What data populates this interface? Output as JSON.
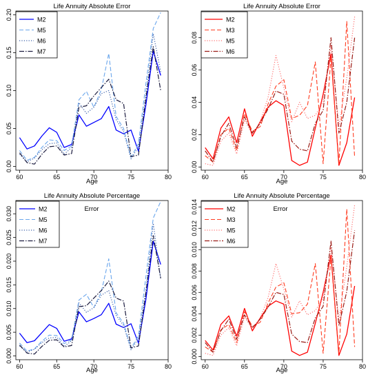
{
  "chart_data": [
    {
      "type": "line",
      "title": "Life Annuity Absolute Error",
      "subtitle": "",
      "xlabel": "Age",
      "ylabel": "",
      "xlim": [
        59.5,
        80
      ],
      "ylim": [
        -0.005,
        0.205
      ],
      "xticks": [
        "60",
        "65",
        "70",
        "75",
        "80"
      ],
      "yticks": [
        "0.00",
        "0.05",
        "0.10",
        "0.15",
        "0.20"
      ],
      "legend_position": "top-left",
      "x": [
        60,
        61,
        62,
        63,
        64,
        65,
        66,
        67,
        68,
        69,
        70,
        71,
        72,
        73,
        74,
        75,
        76,
        77,
        78,
        79
      ],
      "series": [
        {
          "name": "M2",
          "color": "#0000ff",
          "dash": "solid",
          "width": 1.3,
          "values": [
            0.038,
            0.023,
            0.027,
            0.04,
            0.051,
            0.045,
            0.025,
            0.029,
            0.068,
            0.053,
            0.058,
            0.063,
            0.079,
            0.048,
            0.043,
            0.048,
            0.02,
            0.081,
            0.152,
            0.12
          ]
        },
        {
          "name": "M5",
          "color": "#6aa6ec",
          "dash": "6,3",
          "width": 1.1,
          "values": [
            0.021,
            0.008,
            0.012,
            0.025,
            0.035,
            0.034,
            0.021,
            0.027,
            0.088,
            0.099,
            0.078,
            0.101,
            0.149,
            0.066,
            0.05,
            0.012,
            0.03,
            0.109,
            0.182,
            0.203
          ]
        },
        {
          "name": "M6",
          "color": "#3b5fa8",
          "dash": "1.2,2.2",
          "width": 1.2,
          "values": [
            0.016,
            0.006,
            0.011,
            0.022,
            0.03,
            0.031,
            0.016,
            0.025,
            0.084,
            0.07,
            0.078,
            0.096,
            0.1,
            0.062,
            0.046,
            0.01,
            0.026,
            0.095,
            0.175,
            0.125
          ]
        },
        {
          "name": "M7",
          "color": "#1a1a3e",
          "dash": "7,2,1.5,2",
          "width": 1.2,
          "values": [
            0.018,
            0.005,
            0.003,
            0.016,
            0.026,
            0.027,
            0.015,
            0.017,
            0.078,
            0.08,
            0.093,
            0.104,
            0.115,
            0.088,
            0.083,
            0.013,
            0.015,
            0.09,
            0.158,
            0.1
          ]
        }
      ]
    },
    {
      "type": "line",
      "title": "Life Annuity Absolute Error",
      "subtitle": "",
      "xlabel": "Age",
      "ylabel": "",
      "xlim": [
        59.5,
        80
      ],
      "ylim": [
        -0.002,
        0.0965
      ],
      "xticks": [
        "60",
        "65",
        "70",
        "75",
        "80"
      ],
      "yticks": [
        "0.00",
        "0.02",
        "0.04",
        "0.06",
        "0.08"
      ],
      "legend_position": "top-left",
      "x": [
        60,
        61,
        62,
        63,
        64,
        65,
        66,
        67,
        68,
        69,
        70,
        71,
        72,
        73,
        74,
        75,
        76,
        77,
        78,
        79
      ],
      "series": [
        {
          "name": "M2",
          "color": "#ff0000",
          "dash": "solid",
          "width": 1.3,
          "values": [
            0.012,
            0.005,
            0.024,
            0.031,
            0.015,
            0.036,
            0.019,
            0.028,
            0.037,
            0.041,
            0.038,
            0.004,
            0.001,
            0.003,
            0.024,
            0.045,
            0.07,
            0.001,
            0.015,
            0.043
          ]
        },
        {
          "name": "M3",
          "color": "#ff3b1f",
          "dash": "6,3",
          "width": 1.1,
          "values": [
            0.007,
            0.003,
            0.02,
            0.024,
            0.01,
            0.033,
            0.022,
            0.025,
            0.039,
            0.05,
            0.054,
            0.03,
            0.032,
            0.038,
            0.065,
            0.002,
            0.068,
            0.002,
            0.09,
            0.006
          ]
        },
        {
          "name": "M5",
          "color": "#ff6f6f",
          "dash": "1.2,2.2",
          "width": 1.2,
          "values": [
            0.002,
            0.001,
            0.016,
            0.021,
            0.008,
            0.029,
            0.02,
            0.028,
            0.043,
            0.069,
            0.049,
            0.028,
            0.04,
            0.03,
            0.032,
            0.04,
            0.075,
            0.025,
            0.055,
            0.093
          ]
        },
        {
          "name": "M6",
          "color": "#9a1a14",
          "dash": "7,2,1.5,2",
          "width": 1.2,
          "values": [
            0.01,
            0.003,
            0.019,
            0.027,
            0.012,
            0.031,
            0.021,
            0.027,
            0.036,
            0.047,
            0.045,
            0.016,
            0.011,
            0.01,
            0.027,
            0.035,
            0.08,
            0.021,
            0.04,
            0.08
          ]
        }
      ]
    },
    {
      "type": "line",
      "title": "Life Annuity Absolute Percentage",
      "subtitle": "Error",
      "xlabel": "Age",
      "ylabel": "",
      "xlim": [
        59.5,
        80
      ],
      "ylim": [
        -0.0008,
        0.0328
      ],
      "xticks": [
        "60",
        "65",
        "70",
        "75",
        "80"
      ],
      "yticks": [
        "0.000",
        "0.005",
        "0.010",
        "0.015",
        "0.020",
        "0.025",
        "0.030"
      ],
      "legend_position": "top-left",
      "x": [
        60,
        61,
        62,
        63,
        64,
        65,
        66,
        67,
        68,
        69,
        70,
        71,
        72,
        73,
        74,
        75,
        76,
        77,
        78,
        79
      ],
      "series": [
        {
          "name": "M2",
          "color": "#0000ff",
          "dash": "solid",
          "width": 1.3,
          "values": [
            0.0048,
            0.0028,
            0.0032,
            0.0049,
            0.0066,
            0.0058,
            0.0031,
            0.0036,
            0.0093,
            0.0072,
            0.0079,
            0.0087,
            0.0111,
            0.0067,
            0.006,
            0.0068,
            0.0027,
            0.0119,
            0.0242,
            0.0193
          ]
        },
        {
          "name": "M5",
          "color": "#6aa6ec",
          "dash": "6,3",
          "width": 1.1,
          "values": [
            0.0027,
            0.001,
            0.0015,
            0.0031,
            0.0044,
            0.0043,
            0.0026,
            0.0034,
            0.0118,
            0.013,
            0.0102,
            0.0135,
            0.0205,
            0.0091,
            0.0069,
            0.0016,
            0.0042,
            0.0167,
            0.0291,
            0.0326
          ]
        },
        {
          "name": "M6",
          "color": "#3b5fa8",
          "dash": "1.2,2.2",
          "width": 1.2,
          "values": [
            0.0021,
            0.0008,
            0.0014,
            0.0028,
            0.0038,
            0.0039,
            0.002,
            0.0032,
            0.0112,
            0.0092,
            0.0102,
            0.0128,
            0.0138,
            0.0086,
            0.0064,
            0.0013,
            0.0037,
            0.014,
            0.028,
            0.0162
          ]
        },
        {
          "name": "M7",
          "color": "#1a1a3e",
          "dash": "7,2,1.5,2",
          "width": 1.2,
          "values": [
            0.0023,
            0.0006,
            0.0004,
            0.002,
            0.0033,
            0.0034,
            0.0019,
            0.0022,
            0.0104,
            0.0106,
            0.0122,
            0.0138,
            0.0158,
            0.0122,
            0.0116,
            0.0017,
            0.0021,
            0.0133,
            0.0254,
            0.0164
          ]
        }
      ]
    },
    {
      "type": "line",
      "title": "Life Annuity Absolute Percentage",
      "subtitle": "Error",
      "xlabel": "Age",
      "ylabel": "",
      "xlim": [
        59.5,
        80
      ],
      "ylim": [
        -0.0003,
        0.0146
      ],
      "xticks": [
        "60",
        "65",
        "70",
        "75",
        "80"
      ],
      "yticks": [
        "0.000",
        "0.002",
        "0.004",
        "0.006",
        "0.008",
        "0.010",
        "0.012",
        "0.014"
      ],
      "legend_position": "top-left",
      "x": [
        60,
        61,
        62,
        63,
        64,
        65,
        66,
        67,
        68,
        69,
        70,
        71,
        72,
        73,
        74,
        75,
        76,
        77,
        78,
        79
      ],
      "series": [
        {
          "name": "M2",
          "color": "#ff0000",
          "dash": "solid",
          "width": 1.3,
          "values": [
            0.0015,
            0.0006,
            0.003,
            0.0038,
            0.0019,
            0.0045,
            0.0024,
            0.0036,
            0.0047,
            0.0052,
            0.0049,
            0.0005,
            0.0001,
            0.0004,
            0.0031,
            0.006,
            0.0095,
            0.0001,
            0.0021,
            0.0066
          ]
        },
        {
          "name": "M3",
          "color": "#ff3b1f",
          "dash": "6,3",
          "width": 1.1,
          "values": [
            0.0009,
            0.0004,
            0.0025,
            0.003,
            0.0013,
            0.0042,
            0.0028,
            0.0032,
            0.005,
            0.0065,
            0.0069,
            0.004,
            0.0041,
            0.0049,
            0.0087,
            0.0003,
            0.0093,
            0.0003,
            0.0138,
            0.0009
          ]
        },
        {
          "name": "M5",
          "color": "#ff6f6f",
          "dash": "1.2,2.2",
          "width": 1.2,
          "values": [
            0.0003,
            0.0001,
            0.002,
            0.0027,
            0.001,
            0.0037,
            0.0026,
            0.0036,
            0.0055,
            0.0087,
            0.0063,
            0.0037,
            0.0052,
            0.0039,
            0.0043,
            0.0054,
            0.0102,
            0.0034,
            0.0084,
            0.0142
          ]
        },
        {
          "name": "M6",
          "color": "#9a1a14",
          "dash": "7,2,1.5,2",
          "width": 1.2,
          "values": [
            0.0013,
            0.0004,
            0.0024,
            0.0035,
            0.0016,
            0.0039,
            0.0027,
            0.0035,
            0.0046,
            0.006,
            0.0058,
            0.0021,
            0.0014,
            0.0013,
            0.0036,
            0.0047,
            0.0108,
            0.0029,
            0.0061,
            0.0118
          ]
        }
      ]
    }
  ]
}
